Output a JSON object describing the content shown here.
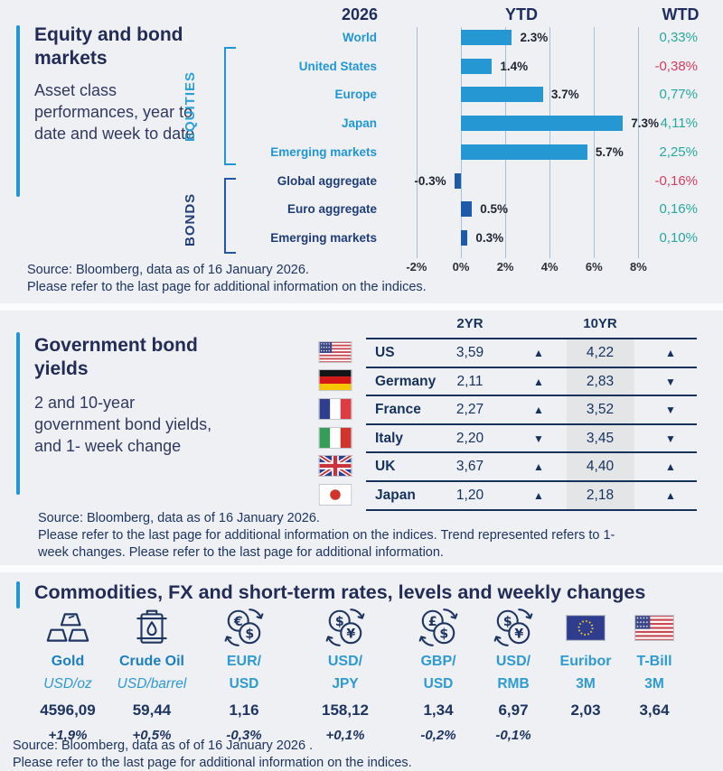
{
  "colors": {
    "accent_blue": "#2196d4",
    "navy": "#1e3461",
    "equity_bar": "#2597d3",
    "bond_bar": "#1d5ba8",
    "equity_label": "#2196d4",
    "bond_label": "#1f3c78",
    "positive": "#2aa79e",
    "negative": "#d43d5f",
    "commodity_blue": "#1b7fc0",
    "fx_blue": "#2e9ad2"
  },
  "card1": {
    "title": "Equity and bond markets",
    "subtitle": "Asset class performances, year to date and week to date",
    "source_line1": "Source: Bloomberg, data as of 16 January 2026.",
    "source_line2": "Please refer to the last page for additional information on the indices."
  },
  "card2": {
    "title": "Government bond yields",
    "subtitle": "2 and 10-year government bond yields, and 1- week change",
    "source_line1": "Source: Bloomberg, data as of 16 January 2026.",
    "source_line2": "Please refer to the last page for additional information on the indices. Trend represented refers to 1-",
    "source_line3": "week changes. Please refer to the last page for additional information."
  },
  "card3": {
    "title": "Commodities, FX and short-term rates, levels and weekly changes",
    "source_line1": "Source: Bloomberg, data as of of 16 January 2026 .",
    "source_line2": "Please refer to the last page for additional information on the indices."
  },
  "chart_data": [
    {
      "type": "bar",
      "orientation": "horizontal",
      "title": "Equity and bond markets — asset class performances",
      "year_header": "2026",
      "ytd_header": "YTD",
      "wtd_header": "WTD",
      "group_labels": [
        "EQUITIES",
        "BONDS"
      ],
      "categories": [
        "World",
        "United States",
        "Europe",
        "Japan",
        "Emerging markets",
        "Global aggregate",
        "Euro aggregate",
        "Emerging markets"
      ],
      "groups": [
        "equities",
        "equities",
        "equities",
        "equities",
        "equities",
        "bonds",
        "bonds",
        "bonds"
      ],
      "ytd_values": [
        2.3,
        1.4,
        3.7,
        7.3,
        5.7,
        -0.3,
        0.5,
        0.3
      ],
      "ytd_labels": [
        "2.3%",
        "1.4%",
        "3.7%",
        "7.3%",
        "5.7%",
        "-0.3%",
        "0.5%",
        "0.3%"
      ],
      "wtd_labels": [
        "0,33%",
        "-0,38%",
        "0,77%",
        "4,11%",
        "2,25%",
        "-0,16%",
        "0,16%",
        "0,10%"
      ],
      "x_ticks": [
        "-2%",
        "0%",
        "2%",
        "4%",
        "6%",
        "8%"
      ],
      "x_tick_values": [
        -2,
        0,
        2,
        4,
        6,
        8
      ],
      "xlim": [
        -2.5,
        9
      ],
      "grid": true,
      "legend_position": "none"
    },
    {
      "type": "table",
      "title": "Government bond yields",
      "columns": [
        "2YR",
        "10YR"
      ],
      "rows": [
        {
          "country": "US",
          "flag": "us",
          "y2": "3,59",
          "t2": "up",
          "y10": "4,22",
          "t10": "up"
        },
        {
          "country": "Germany",
          "flag": "de",
          "y2": "2,11",
          "t2": "up",
          "y10": "2,83",
          "t10": "down"
        },
        {
          "country": "France",
          "flag": "fr",
          "y2": "2,27",
          "t2": "up",
          "y10": "3,52",
          "t10": "down"
        },
        {
          "country": "Italy",
          "flag": "it",
          "y2": "2,20",
          "t2": "down",
          "y10": "3,45",
          "t10": "down"
        },
        {
          "country": "UK",
          "flag": "uk",
          "y2": "3,67",
          "t2": "up",
          "y10": "4,40",
          "t10": "up"
        },
        {
          "country": "Japan",
          "flag": "jp",
          "y2": "1,20",
          "t2": "up",
          "y10": "2,18",
          "t10": "up"
        }
      ]
    },
    {
      "type": "table",
      "title": "Commodities, FX and short-term rates, levels and weekly changes",
      "items": [
        {
          "icon": "gold-bars-icon",
          "line1": "Gold",
          "line2": "USD/oz",
          "line2_italic": true,
          "kind": "commodity",
          "value": "4596,09",
          "change": "+1,9%"
        },
        {
          "icon": "oil-barrel-icon",
          "line1": "Crude Oil",
          "line2": "USD/barrel",
          "line2_italic": true,
          "kind": "commodity",
          "value": "59,44",
          "change": "+0,5%"
        },
        {
          "icon": "fx-eur-usd-icon",
          "line1": "EUR/",
          "line2": "USD",
          "line2_italic": false,
          "kind": "fx",
          "value": "1,16",
          "change": "-0,3%"
        },
        {
          "icon": "fx-usd-jpy-icon",
          "line1": "USD/",
          "line2": "JPY",
          "line2_italic": false,
          "kind": "fx",
          "value": "158,12",
          "change": "+0,1%"
        },
        {
          "icon": "fx-gbp-usd-icon",
          "line1": "GBP/",
          "line2": "USD",
          "line2_italic": false,
          "kind": "fx",
          "value": "1,34",
          "change": "-0,2%"
        },
        {
          "icon": "fx-usd-rmb-icon",
          "line1": "USD/",
          "line2": "RMB",
          "line2_italic": false,
          "kind": "fx",
          "value": "6,97",
          "change": "-0,1%"
        },
        {
          "icon": "eu-flag-icon",
          "line1": "Euribor",
          "line2": "3M",
          "line2_italic": false,
          "kind": "fx",
          "value": "2,03",
          "change": ""
        },
        {
          "icon": "us-flag-icon",
          "line1": "T-Bill",
          "line2": "3M",
          "line2_italic": false,
          "kind": "fx",
          "value": "3,64",
          "change": ""
        }
      ]
    }
  ]
}
